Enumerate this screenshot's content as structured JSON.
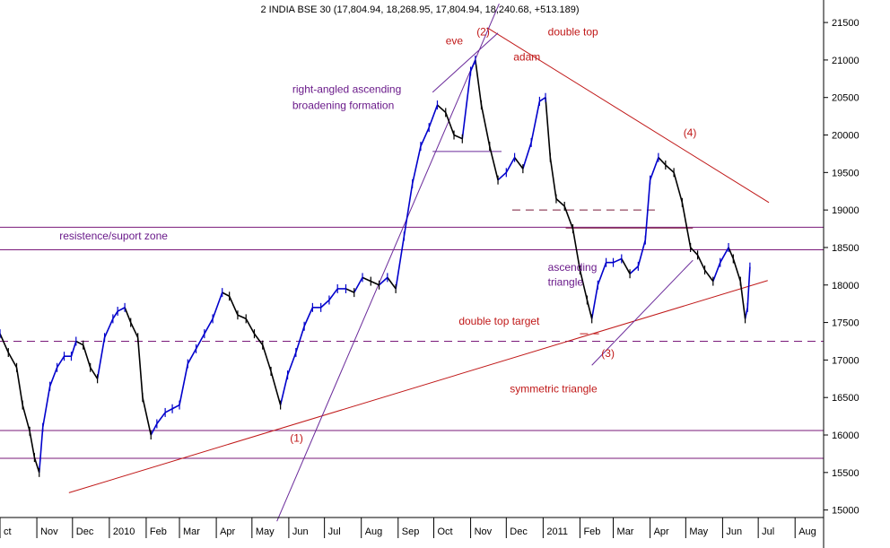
{
  "chart_data": {
    "type": "line",
    "title": "2 INDIA BSE 30 (17,804.94, 18,268.95, 17,804.94, 18,240.68, +513.189)",
    "ylim": [
      14900,
      21800
    ],
    "y_ticks": [
      15000,
      15500,
      16000,
      16500,
      17000,
      17500,
      18000,
      18500,
      19000,
      19500,
      20000,
      20500,
      21000,
      21500
    ],
    "x_labels": [
      "ct",
      "Nov",
      "Dec",
      "2010",
      "Feb",
      "Mar",
      "Apr",
      "May",
      "Jun",
      "Jul",
      "Aug",
      "Sep",
      "Oct",
      "Nov",
      "Dec",
      "2011",
      "Feb",
      "Mar",
      "Apr",
      "May",
      "Jun",
      "Jul",
      "Aug"
    ],
    "x_domain": [
      "2009-10-01",
      "2011-08-25"
    ],
    "series": [
      {
        "color_up": "#0000cc",
        "color_down": "#000000",
        "points": [
          [
            "2009-10-01",
            17350
          ],
          [
            "2009-10-08",
            17100
          ],
          [
            "2009-10-15",
            16900
          ],
          [
            "2009-10-20",
            16400
          ],
          [
            "2009-10-26",
            16050
          ],
          [
            "2009-10-30",
            15700
          ],
          [
            "2009-11-03",
            15500
          ],
          [
            "2009-11-06",
            16100
          ],
          [
            "2009-11-12",
            16650
          ],
          [
            "2009-11-18",
            16900
          ],
          [
            "2009-11-24",
            17050
          ],
          [
            "2009-11-30",
            17050
          ],
          [
            "2009-12-04",
            17250
          ],
          [
            "2009-12-10",
            17200
          ],
          [
            "2009-12-16",
            16900
          ],
          [
            "2009-12-22",
            16750
          ],
          [
            "2009-12-28",
            17300
          ],
          [
            "2010-01-04",
            17550
          ],
          [
            "2010-01-08",
            17650
          ],
          [
            "2010-01-14",
            17700
          ],
          [
            "2010-01-19",
            17500
          ],
          [
            "2010-01-25",
            17300
          ],
          [
            "2010-01-29",
            16500
          ],
          [
            "2010-02-05",
            16000
          ],
          [
            "2010-02-10",
            16150
          ],
          [
            "2010-02-17",
            16300
          ],
          [
            "2010-02-23",
            16350
          ],
          [
            "2010-03-01",
            16400
          ],
          [
            "2010-03-08",
            16950
          ],
          [
            "2010-03-15",
            17150
          ],
          [
            "2010-03-22",
            17350
          ],
          [
            "2010-03-29",
            17550
          ],
          [
            "2010-04-06",
            17900
          ],
          [
            "2010-04-12",
            17850
          ],
          [
            "2010-04-19",
            17600
          ],
          [
            "2010-04-26",
            17550
          ],
          [
            "2010-05-03",
            17350
          ],
          [
            "2010-05-10",
            17200
          ],
          [
            "2010-05-17",
            16850
          ],
          [
            "2010-05-25",
            16400
          ],
          [
            "2010-05-31",
            16800
          ],
          [
            "2010-06-07",
            17100
          ],
          [
            "2010-06-14",
            17450
          ],
          [
            "2010-06-21",
            17700
          ],
          [
            "2010-06-28",
            17700
          ],
          [
            "2010-07-05",
            17800
          ],
          [
            "2010-07-12",
            17950
          ],
          [
            "2010-07-19",
            17950
          ],
          [
            "2010-07-26",
            17900
          ],
          [
            "2010-08-02",
            18100
          ],
          [
            "2010-08-09",
            18050
          ],
          [
            "2010-08-16",
            18000
          ],
          [
            "2010-08-23",
            18100
          ],
          [
            "2010-08-30",
            17950
          ],
          [
            "2010-09-06",
            18650
          ],
          [
            "2010-09-13",
            19350
          ],
          [
            "2010-09-20",
            19850
          ],
          [
            "2010-09-27",
            20100
          ],
          [
            "2010-10-04",
            20400
          ],
          [
            "2010-10-11",
            20300
          ],
          [
            "2010-10-18",
            20000
          ],
          [
            "2010-10-25",
            19950
          ],
          [
            "2010-11-01",
            20850
          ],
          [
            "2010-11-05",
            21000
          ],
          [
            "2010-11-10",
            20400
          ],
          [
            "2010-11-17",
            19850
          ],
          [
            "2010-11-24",
            19400
          ],
          [
            "2010-12-01",
            19500
          ],
          [
            "2010-12-08",
            19700
          ],
          [
            "2010-12-15",
            19550
          ],
          [
            "2010-12-22",
            19900
          ],
          [
            "2010-12-29",
            20450
          ],
          [
            "2011-01-03",
            20500
          ],
          [
            "2011-01-07",
            19700
          ],
          [
            "2011-01-12",
            19150
          ],
          [
            "2011-01-19",
            19050
          ],
          [
            "2011-01-26",
            18750
          ],
          [
            "2011-02-01",
            18200
          ],
          [
            "2011-02-07",
            17800
          ],
          [
            "2011-02-11",
            17550
          ],
          [
            "2011-02-16",
            18000
          ],
          [
            "2011-02-23",
            18300
          ],
          [
            "2011-03-01",
            18300
          ],
          [
            "2011-03-08",
            18350
          ],
          [
            "2011-03-15",
            18150
          ],
          [
            "2011-03-22",
            18250
          ],
          [
            "2011-03-28",
            18600
          ],
          [
            "2011-04-01",
            19400
          ],
          [
            "2011-04-08",
            19700
          ],
          [
            "2011-04-14",
            19600
          ],
          [
            "2011-04-21",
            19500
          ],
          [
            "2011-04-28",
            19100
          ],
          [
            "2011-05-05",
            18500
          ],
          [
            "2011-05-11",
            18400
          ],
          [
            "2011-05-17",
            18200
          ],
          [
            "2011-05-24",
            18050
          ],
          [
            "2011-05-30",
            18300
          ],
          [
            "2011-06-06",
            18500
          ],
          [
            "2011-06-10",
            18350
          ],
          [
            "2011-06-16",
            18050
          ],
          [
            "2011-06-20",
            17550
          ],
          [
            "2011-06-22",
            17700
          ],
          [
            "2011-06-24",
            18240
          ]
        ]
      }
    ],
    "horizontal_lines": [
      {
        "y": 18770,
        "color": "#7a1a7a",
        "style": "solid"
      },
      {
        "y": 18470,
        "color": "#7a1a7a",
        "style": "solid"
      },
      {
        "y": 16060,
        "color": "#7a1a7a",
        "style": "solid"
      },
      {
        "y": 15690,
        "color": "#7a1a7a",
        "style": "solid"
      },
      {
        "y": 17250,
        "color": "#7a1a7a",
        "style": "dashed"
      }
    ],
    "trendlines": [
      {
        "from": [
          "2009-11-28",
          15230
        ],
        "to": [
          "2011-07-09",
          18060
        ],
        "color": "#c01818",
        "style": "solid"
      },
      {
        "from": [
          "2010-11-15",
          21430
        ],
        "to": [
          "2011-07-10",
          19100
        ],
        "color": "#c01818",
        "style": "solid"
      },
      {
        "from": [
          "2010-05-22",
          14850
        ],
        "to": [
          "2010-11-25",
          21750
        ],
        "color": "#6a2a9a",
        "style": "solid"
      },
      {
        "from": [
          "2010-09-30",
          20570
        ],
        "to": [
          "2010-11-24",
          21360
        ],
        "color": "#6a2a9a",
        "style": "solid"
      },
      {
        "from": [
          "2010-09-30",
          19780
        ],
        "to": [
          "2010-11-27",
          19780
        ],
        "color": "#6a2a9a",
        "style": "solid"
      },
      {
        "from": [
          "2011-02-11",
          16930
        ],
        "to": [
          "2011-05-07",
          18330
        ],
        "color": "#6a2a9a",
        "style": "solid"
      },
      {
        "from": [
          "2011-01-20",
          18760
        ],
        "to": [
          "2011-05-07",
          18760
        ],
        "color": "#7a1a3a",
        "style": "solid"
      },
      {
        "from": [
          "2010-12-06",
          19000
        ],
        "to": [
          "2011-04-07",
          19000
        ],
        "color": "#7a1a3a",
        "style": "dashed"
      },
      {
        "from": [
          "2011-02-01",
          17350
        ],
        "to": [
          "2011-02-17",
          17350
        ],
        "color": "#c01818",
        "style": "dashed"
      }
    ],
    "annotations": [
      {
        "text": "eve",
        "at": [
          "2010-10-11",
          21210
        ],
        "color": "red"
      },
      {
        "text": "(2)",
        "at": [
          "2010-11-06",
          21330
        ],
        "color": "red"
      },
      {
        "text": "double top",
        "at": [
          "2011-01-05",
          21330
        ],
        "color": "red"
      },
      {
        "text": "adam",
        "at": [
          "2010-12-07",
          20990
        ],
        "color": "red"
      },
      {
        "text": "right-angled ascending",
        "at": [
          "2010-06-04",
          20560
        ],
        "color": "purple"
      },
      {
        "text": "broadening formation",
        "at": [
          "2010-06-04",
          20350
        ],
        "color": "purple"
      },
      {
        "text": "(4)",
        "at": [
          "2011-04-29",
          19980
        ],
        "color": "red"
      },
      {
        "text": "resistence/suport zone",
        "at": [
          "2009-11-20",
          18610
        ],
        "color": "purple"
      },
      {
        "text": "ascending",
        "at": [
          "2011-01-05",
          18190
        ],
        "color": "purple"
      },
      {
        "text": "triangle",
        "at": [
          "2011-01-05",
          17990
        ],
        "color": "purple"
      },
      {
        "text": "double top  target",
        "at": [
          "2010-10-22",
          17470
        ],
        "color": "red"
      },
      {
        "text": "(3)",
        "at": [
          "2011-02-19",
          17040
        ],
        "color": "red"
      },
      {
        "text": "symmetric triangle",
        "at": [
          "2010-12-04",
          16570
        ],
        "color": "red"
      },
      {
        "text": "(1)",
        "at": [
          "2010-06-02",
          15910
        ],
        "color": "red"
      }
    ]
  }
}
